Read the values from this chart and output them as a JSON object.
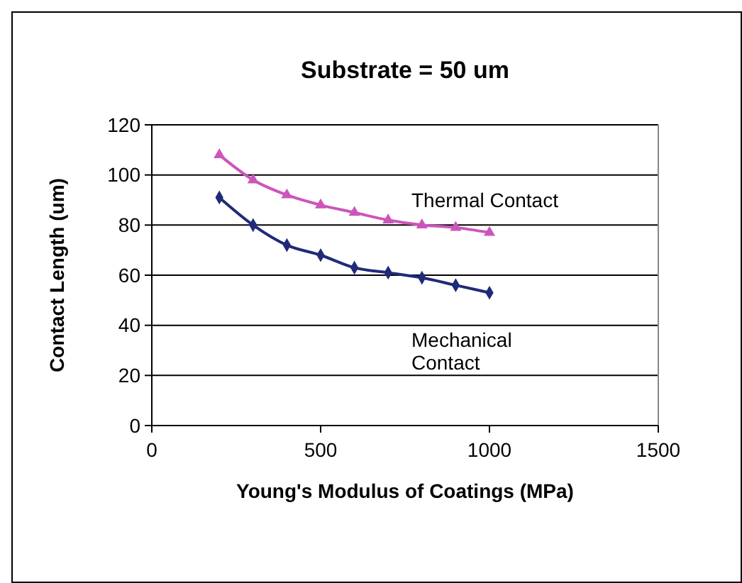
{
  "chart_data": {
    "type": "line",
    "title": "Substrate = 50 um",
    "xlabel": "Young's Modulus of Coatings (MPa)",
    "ylabel": "Contact Length (um)",
    "x": [
      200,
      300,
      400,
      500,
      600,
      700,
      800,
      900,
      1000
    ],
    "series": [
      {
        "name": "Thermal Contact",
        "color": "#cc55bb",
        "marker": "triangle",
        "values": [
          108,
          98,
          92,
          88,
          85,
          82,
          80,
          79,
          77
        ]
      },
      {
        "name": "Mechanical Contact",
        "color": "#1f2a78",
        "marker": "diamond",
        "values": [
          91,
          80,
          72,
          68,
          63,
          61,
          59,
          56,
          53
        ]
      }
    ],
    "xlim": [
      0,
      1500
    ],
    "xticks": [
      0,
      500,
      1000,
      1500
    ],
    "ylim": [
      0,
      120
    ],
    "yticks": [
      0,
      20,
      40,
      60,
      80,
      100,
      120
    ],
    "grid": "y"
  }
}
